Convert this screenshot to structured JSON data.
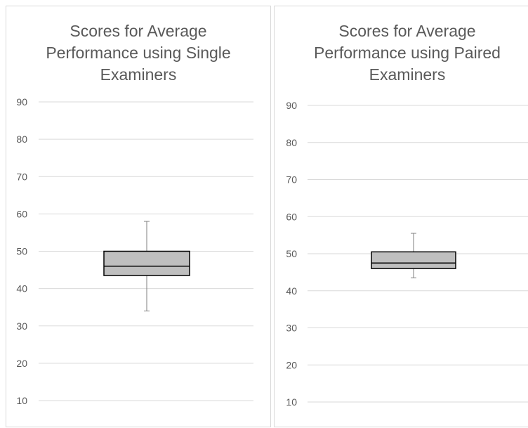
{
  "chart_data": [
    {
      "type": "box",
      "title": "Scores for Average Performance using Single Examiners",
      "title_lines": [
        "Scores for Average",
        "Performance using Single",
        "Examiners"
      ],
      "ylim": [
        10,
        90
      ],
      "yticks": [
        10,
        20,
        30,
        40,
        50,
        60,
        70,
        80,
        90
      ],
      "grid": true,
      "box": {
        "whisker_low": 34,
        "q1": 43.5,
        "median": 46,
        "q3": 50,
        "whisker_high": 58
      },
      "box_color": "#bfbfbf"
    },
    {
      "type": "box",
      "title": "Scores for Average Performance using Paired Examiners",
      "title_lines": [
        "Scores for Average",
        "Performance using Paired",
        "Examiners"
      ],
      "ylim": [
        10,
        90
      ],
      "yticks": [
        10,
        20,
        30,
        40,
        50,
        60,
        70,
        80,
        90
      ],
      "grid": true,
      "box": {
        "whisker_low": 43.5,
        "q1": 46,
        "median": 47.5,
        "q3": 50.5,
        "whisker_high": 55.5
      },
      "box_color": "#bfbfbf"
    }
  ]
}
